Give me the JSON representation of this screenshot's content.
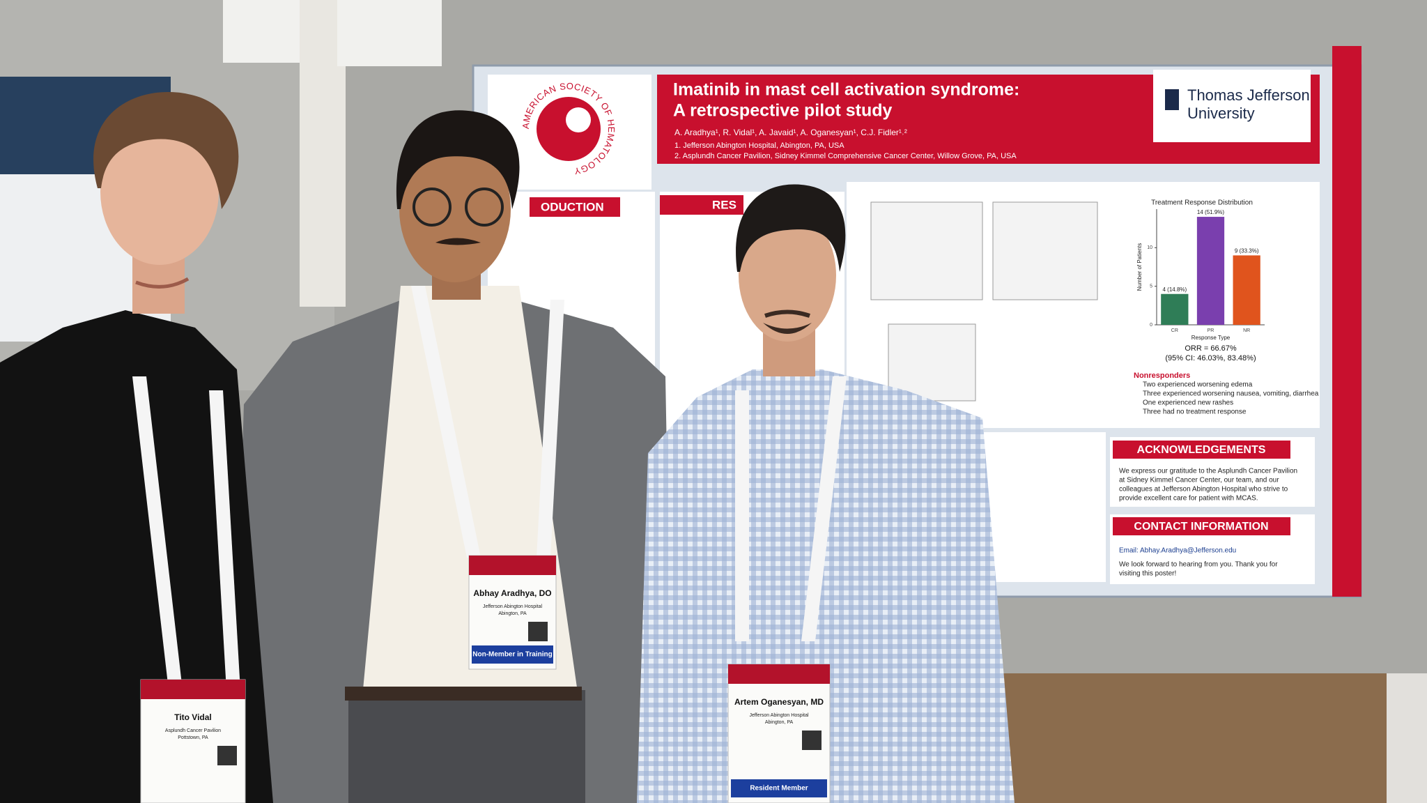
{
  "poster": {
    "society": "AMERICAN SOCIETY OF HEMATOLOGY",
    "title_line1": "Imatinib in mast cell activation syndrome:",
    "title_line2": "A retrospective pilot study",
    "authors": "A. Aradhya¹, R. Vidal¹, A. Javaid¹, A. Oganesyan¹, C.J. Fidler¹˒²",
    "affiliations": [
      "1. Jefferson Abington Hospital, Abington, PA, USA",
      "2. Asplundh Cancer Pavilion, Sidney Kimmel Comprehensive Cancer Center, Willow Grove, PA, USA"
    ],
    "logo": [
      "Thomas Jefferson",
      "University"
    ],
    "intro_header": "ODUCTION",
    "results_header": "RES",
    "chart": {
      "type": "bar",
      "title": "Treatment Response Distribution",
      "y_label": "Number of Patients",
      "x_label": "Response Type",
      "categories": [
        "CR",
        "PR",
        "NR"
      ],
      "values": [
        4,
        14,
        9
      ],
      "value_labels": [
        "4 (14.8%)",
        "14 (51.9%)",
        "9 (33.3%)"
      ],
      "colors": [
        "#2f7d57",
        "#7a3fae",
        "#e0541d"
      ],
      "ylim": [
        0,
        15
      ],
      "yticks": [
        0,
        5,
        10
      ]
    },
    "orr": "ORR = 66.67%",
    "ci": "(95% CI: 46.03%, 83.48%)",
    "nonresponders": {
      "title": "Nonresponders",
      "items": [
        "Two experienced worsening edema",
        "Three experienced worsening nausea, vomiting, diarrhea",
        "One experienced new rashes",
        "Three had no treatment response"
      ]
    },
    "acknowledgements": {
      "header": "ACKNOWLEDGEMENTS",
      "lines": [
        "We express our gratitude to the Asplundh Cancer Pavilion",
        "at Sidney Kimmel Cancer Center, our team, and our",
        "colleagues at Jefferson Abington Hospital who strive to",
        "provide excellent care for patient with MCAS."
      ]
    },
    "contact": {
      "header": "CONTACT INFORMATION",
      "email": "Email: Abhay.Aradhya@Jefferson.edu",
      "note": [
        "We look forward to hearing from you. Thank you for",
        "visiting this poster!"
      ]
    }
  },
  "badges": [
    {
      "name": "Tito Vidal",
      "org": "Asplundh Cancer Pavilion",
      "location": "Pottstown, PA"
    },
    {
      "name": "Abhay Aradhya, DO",
      "org": "Jefferson Abington Hospital",
      "location": "Abington, PA",
      "status": "Non-Member in Training"
    },
    {
      "name": "Artem Oganesyan, MD",
      "org": "Jefferson Abington Hospital",
      "location": "Abington, PA",
      "status": "Resident Member"
    }
  ]
}
